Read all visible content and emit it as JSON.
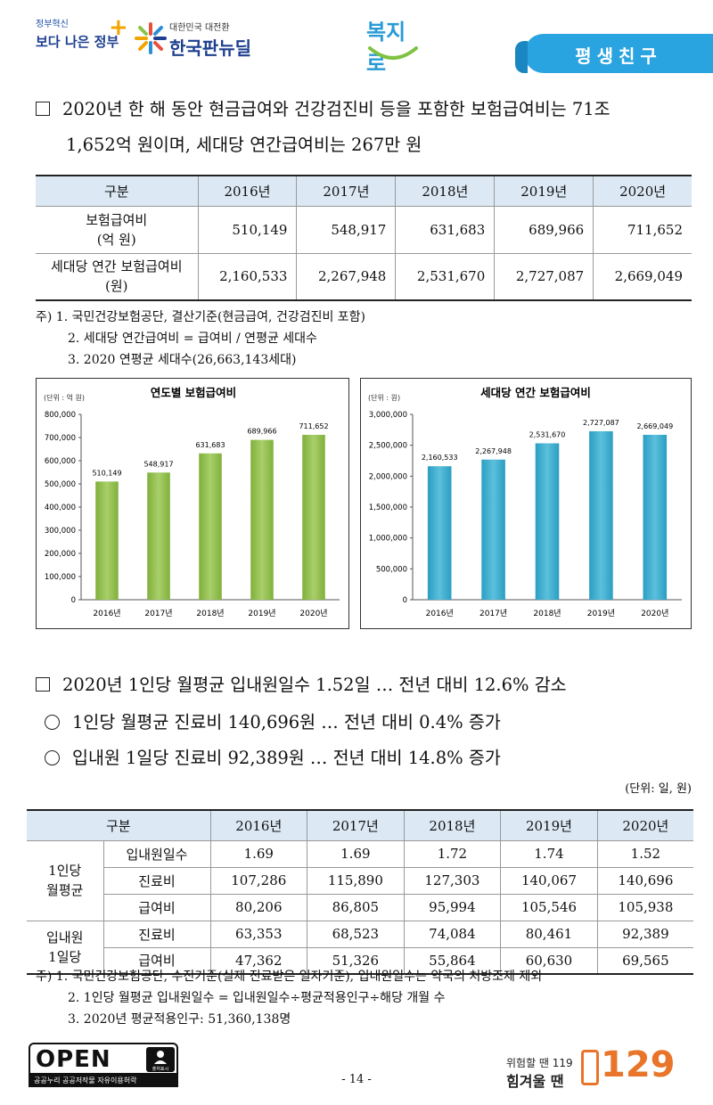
{
  "header": {
    "gov_small": "정부혁신",
    "gov_big": "보다 나은 정부",
    "kn_small": "대한민국 대전환",
    "kn_big": "한국판뉴딜",
    "bokjiro": "복지로",
    "banner": "평생친구"
  },
  "section1": {
    "line1": "2020년 한 해 동안 현금급여와 건강검진비 등을 포함한 보험급여비는 71조",
    "line2": "1,652억 원이며, 세대당 연간급여비는 267만 원"
  },
  "table1": {
    "header": [
      "구분",
      "2016년",
      "2017년",
      "2018년",
      "2019년",
      "2020년"
    ],
    "rows": [
      {
        "label1": "보험급여비",
        "label2": "(억 원)",
        "values": [
          "510,149",
          "548,917",
          "631,683",
          "689,966",
          "711,652"
        ]
      },
      {
        "label1": "세대당 연간 보험급여비",
        "label2": "(원)",
        "values": [
          "2,160,533",
          "2,267,948",
          "2,531,670",
          "2,727,087",
          "2,669,049"
        ]
      }
    ]
  },
  "notes1": [
    "주) 1. 국민건강보험공단, 결산기준(현금급여, 건강검진비 포함)",
    "2. 세대당 연간급여비 = 급여비 / 연평균 세대수",
    "3. 2020 연평균 세대수(26,663,143세대)"
  ],
  "chart_data": [
    {
      "type": "bar",
      "title": "연도별 보험급여비",
      "unit": "(단위 : 억 원)",
      "categories": [
        "2016년",
        "2017년",
        "2018년",
        "2019년",
        "2020년"
      ],
      "values": [
        510149,
        548917,
        631683,
        689966,
        711652
      ],
      "labels": [
        "510,149",
        "548,917",
        "631,683",
        "689,966",
        "711,652"
      ],
      "yticks": [
        "0",
        "100,000",
        "200,000",
        "300,000",
        "400,000",
        "500,000",
        "600,000",
        "700,000",
        "800,000"
      ],
      "ylim": [
        0,
        800000
      ],
      "color": "#7fb03a",
      "color_light": "#a9cf6b"
    },
    {
      "type": "bar",
      "title": "세대당 연간 보험급여비",
      "unit": "(단위 : 원)",
      "categories": [
        "2016년",
        "2017년",
        "2018년",
        "2019년",
        "2020년"
      ],
      "values": [
        2160533,
        2267948,
        2531670,
        2727087,
        2669049
      ],
      "labels": [
        "2,160,533",
        "2,267,948",
        "2,531,670",
        "2,727,087",
        "2,669,049"
      ],
      "yticks": [
        "0",
        "500,000",
        "1,000,000",
        "1,500,000",
        "2,000,000",
        "2,500,000",
        "3,000,000"
      ],
      "ylim": [
        0,
        3000000
      ],
      "color": "#2a9ec2",
      "color_light": "#5cc0dc"
    }
  ],
  "section2": {
    "line1": "2020년 1인당 월평균 입내원일수 1.52일 … 전년 대비 12.6% 감소",
    "bullet1": "1인당 월평균 진료비 140,696원 … 전년 대비 0.4% 증가",
    "bullet2": "입내원 1일당 진료비 92,389원 … 전년 대비 14.8% 증가",
    "unit": "(단위: 일, 원)"
  },
  "table2": {
    "header": [
      "구분",
      "2016년",
      "2017년",
      "2018년",
      "2019년",
      "2020년"
    ],
    "groups": [
      {
        "label1": "1인당",
        "label2": "월평균",
        "rows": [
          {
            "label": "입내원일수",
            "values": [
              "1.69",
              "1.69",
              "1.72",
              "1.74",
              "1.52"
            ]
          },
          {
            "label": "진료비",
            "values": [
              "107,286",
              "115,890",
              "127,303",
              "140,067",
              "140,696"
            ]
          },
          {
            "label": "급여비",
            "values": [
              "80,206",
              "86,805",
              "95,994",
              "105,546",
              "105,938"
            ]
          }
        ]
      },
      {
        "label1": "입내원",
        "label2": "1일당",
        "rows": [
          {
            "label": "진료비",
            "values": [
              "63,353",
              "68,523",
              "74,084",
              "80,461",
              "92,389"
            ]
          },
          {
            "label": "급여비",
            "values": [
              "47,362",
              "51,326",
              "55,864",
              "60,630",
              "69,565"
            ]
          }
        ]
      }
    ]
  },
  "notes2": [
    "주) 1. 국민건강보험공단, 수진기준(실제 진료받은 일자기준), 입내원일수는 약국의 처방조제 제외",
    "2. 1인당 월평균 입내원일수 = 입내원일수÷평균적용인구÷해당 개월 수",
    "3. 2020년 평균적용인구: 51,360,138명"
  ],
  "footer": {
    "open_word": "OPEN",
    "open_badge": "출처표시",
    "open_bar": "공공누리  공공저작물 자유이용허락",
    "page": "- 14 -",
    "help_line1": "위험할 땐 119",
    "help_line2": "힘겨울 땐",
    "help_number": "129"
  }
}
